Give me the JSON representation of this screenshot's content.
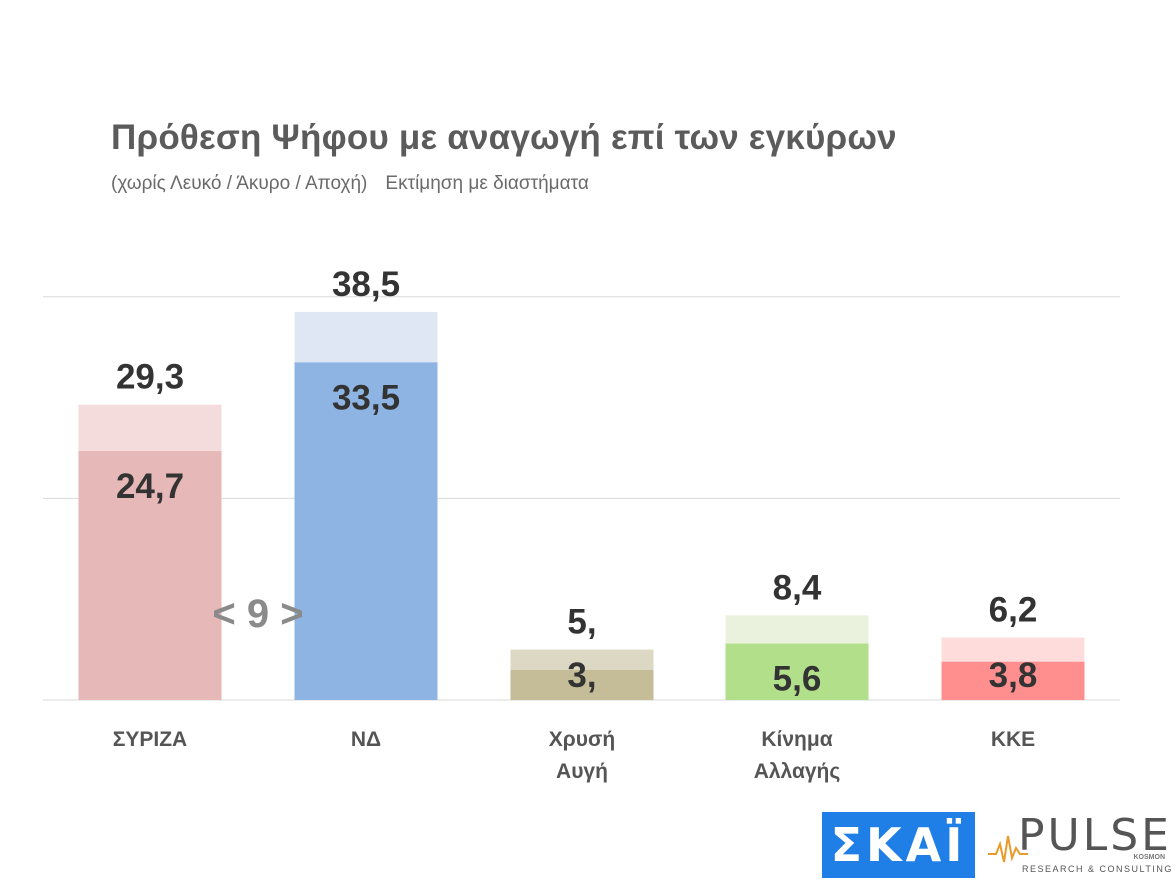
{
  "header": {
    "title": "Πρόθεση Ψήφου με αναγωγή επί των εγκύρων",
    "subtitle_part1": "(χωρίς Λευκό / Άκυρο / Αποχή)",
    "subtitle_part2": "Εκτίμηση με διαστήματα"
  },
  "chart_data": {
    "type": "bar",
    "categories": [
      "ΣΥΡΙΖΑ",
      "ΝΔ",
      "Χρυσή Αυγή",
      "Κίνημα Αλλαγής",
      "ΚΚΕ"
    ],
    "category_lines": [
      [
        "ΣΥΡΙΖΑ"
      ],
      [
        "ΝΔ"
      ],
      [
        "Χρυσή",
        "Αυγή"
      ],
      [
        "Κίνημα",
        "Αλλαγής"
      ],
      [
        "ΚΚΕ"
      ]
    ],
    "series": [
      {
        "values": [
          24.7,
          33.5,
          3,
          5.6,
          3.8
        ]
      },
      {
        "values": [
          29.3,
          38.5,
          5,
          8.4,
          6.2
        ]
      }
    ],
    "low_labels": [
      "24,7",
      "33,5",
      "3,",
      "5,6",
      "3,8"
    ],
    "high_labels": [
      "29,3",
      "38,5",
      "5,",
      "8,4",
      "6,2"
    ],
    "colors": {
      "base": [
        "#e6b8b7",
        "#8eb4e3",
        "#c4bd97",
        "#b2df8a",
        "#ff8f8f"
      ],
      "range": [
        "#f5dcdc",
        "#dfe7f4",
        "#ddd8c4",
        "#eaf2de",
        "#ffdcdc"
      ],
      "grid": "#d9d9d9"
    },
    "gap_annotation": "< 9 >",
    "ylim": [
      0,
      40
    ],
    "grid": true
  },
  "logos": {
    "skai": "ΣΚΑΪ",
    "pulse": "PULSE",
    "pulse_kosmon": "KOSMON",
    "pulse_sub": "RESEARCH & CONSULTING"
  }
}
